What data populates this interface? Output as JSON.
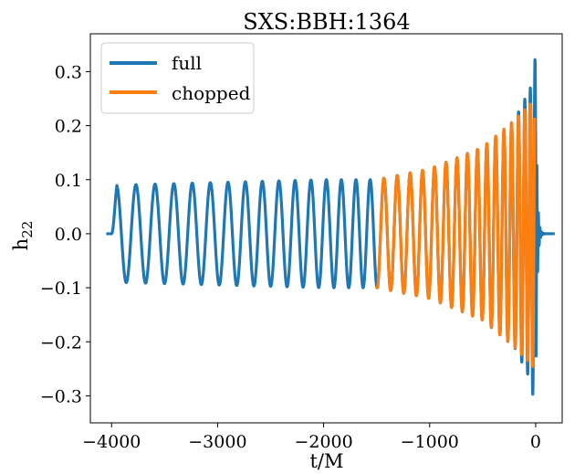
{
  "chart_data": {
    "type": "line",
    "title": "SXS:BBH:1364",
    "xlabel": "t/M",
    "ylabel_main": "h",
    "ylabel_sub": "22",
    "xlim": [
      -4200,
      250
    ],
    "ylim": [
      -0.35,
      0.37
    ],
    "x_ticks": [
      -4000,
      -3000,
      -2000,
      -1000,
      0
    ],
    "x_tick_labels": [
      "−4000",
      "−3000",
      "−2000",
      "−1000",
      "0"
    ],
    "y_ticks": [
      0.3,
      0.2,
      0.1,
      0.0,
      -0.1,
      -0.2,
      -0.3
    ],
    "y_tick_labels": [
      "0.3",
      "0.2",
      "0.1",
      "0.0",
      "−0.1",
      "−0.2",
      "−0.3"
    ],
    "legend_position": "upper-left",
    "grid": false,
    "series": [
      {
        "name": "full",
        "color": "#1f77b4",
        "t_start": -4050,
        "t_end": 180,
        "signal_start": -4000,
        "merger_time": 0,
        "inspiral_amplitude": [
          [
            -4000,
            0.0
          ],
          [
            -3950,
            0.09
          ],
          [
            -2000,
            0.1
          ],
          [
            -1500,
            0.1
          ],
          [
            -1000,
            0.12
          ],
          [
            -500,
            0.16
          ],
          [
            -200,
            0.21
          ],
          [
            -50,
            0.27
          ],
          [
            0,
            0.33
          ]
        ],
        "ringdown_decay_time": 12
      },
      {
        "name": "chopped",
        "color": "#ff7f0e",
        "t_start": -1500,
        "t_end": -10,
        "amplitude": [
          [
            -1500,
            0.1
          ],
          [
            -1000,
            0.12
          ],
          [
            -500,
            0.16
          ],
          [
            -200,
            0.21
          ],
          [
            -50,
            0.24
          ],
          [
            -10,
            0.25
          ]
        ]
      }
    ]
  }
}
